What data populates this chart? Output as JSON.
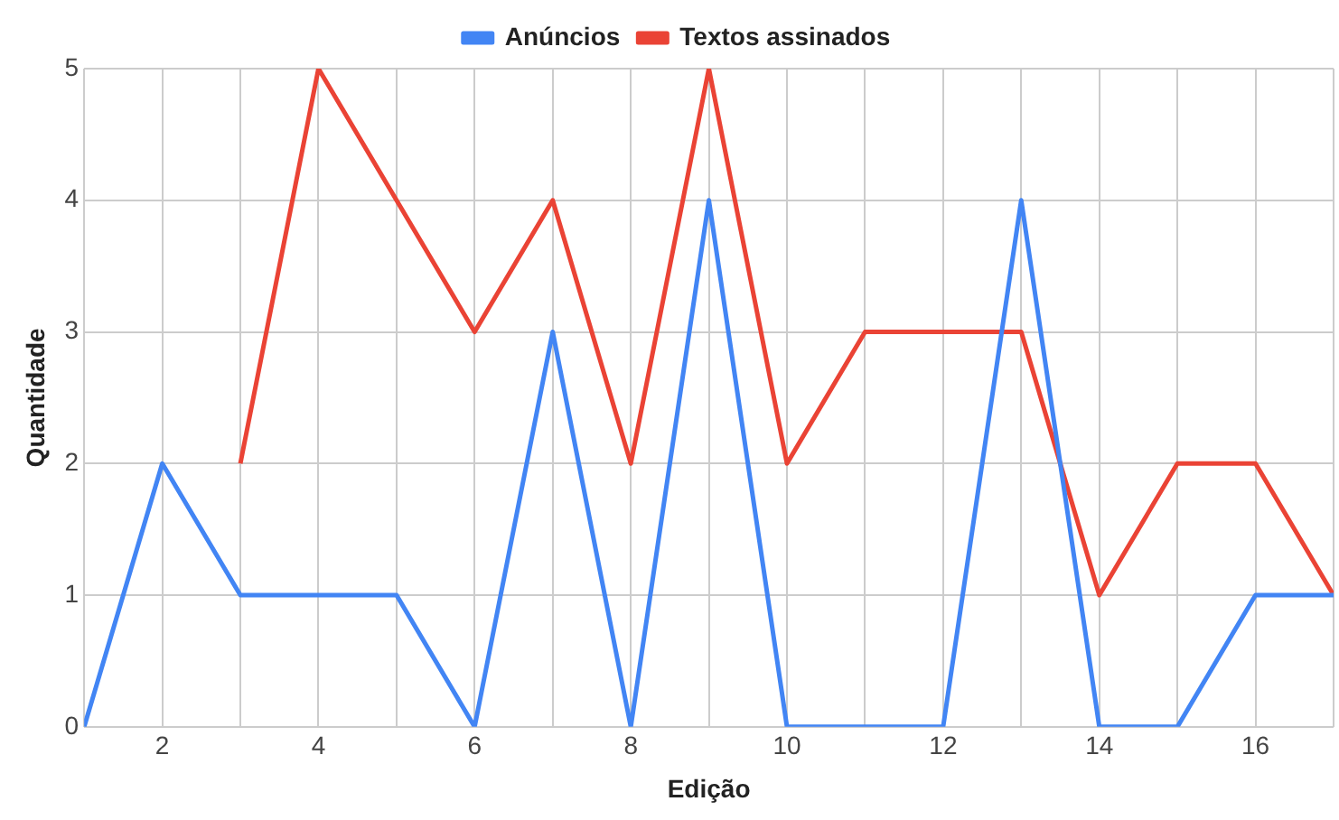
{
  "chart_data": {
    "type": "line",
    "xlabel": "Edição",
    "ylabel": "Quantidade",
    "x": [
      1,
      2,
      3,
      4,
      5,
      6,
      7,
      8,
      9,
      10,
      11,
      12,
      13,
      14,
      15,
      16,
      17
    ],
    "series": [
      {
        "name": "Anúncios",
        "color": "#4285f4",
        "values": [
          0,
          2,
          1,
          1,
          1,
          0,
          3,
          0,
          4,
          0,
          0,
          0,
          4,
          0,
          0,
          1,
          1
        ]
      },
      {
        "name": "Textos assinados",
        "color": "#ea4335",
        "values": [
          null,
          null,
          2,
          5,
          4,
          3,
          4,
          2,
          5,
          2,
          3,
          3,
          3,
          1,
          2,
          2,
          1
        ]
      }
    ],
    "xlim": [
      1,
      17
    ],
    "xticks": [
      {
        "value": 1,
        "label": null
      },
      2,
      {
        "value": 3,
        "label": null
      },
      4,
      {
        "value": 5,
        "label": null
      },
      6,
      {
        "value": 7,
        "label": null
      },
      8,
      {
        "value": 9,
        "label": null
      },
      10,
      {
        "value": 11,
        "label": null
      },
      12,
      {
        "value": 13,
        "label": null
      },
      14,
      {
        "value": 15,
        "label": null
      },
      16,
      {
        "value": 17,
        "label": null
      }
    ],
    "ylim": [
      0,
      5
    ],
    "yticks": [
      0,
      1,
      2,
      3,
      4,
      5
    ],
    "grid": true,
    "legend": "top",
    "marker": "none",
    "line_style": "solid"
  }
}
